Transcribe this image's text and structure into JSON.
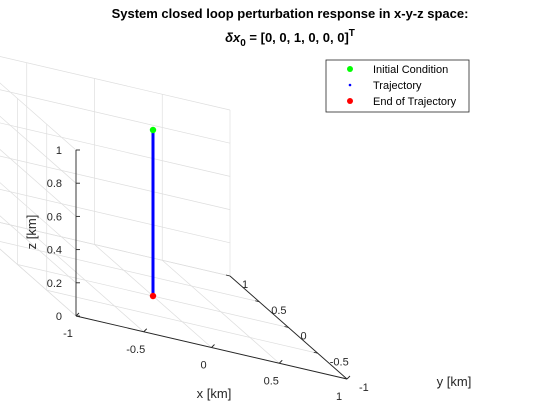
{
  "chart_data": {
    "type": "line",
    "projection": "3d",
    "title": "System closed loop perturbation response in x-y-z space:",
    "subtitle_lhs": "δx",
    "subtitle_sub": "0",
    "subtitle_rhs": " = [0, 0, 1, 0, 0, 0]",
    "subtitle_sup": "T",
    "xlabel": "x [km]",
    "ylabel": "y [km]",
    "zlabel": "z [km]",
    "xlim": [
      -1,
      1
    ],
    "ylim": [
      -1,
      1
    ],
    "zlim": [
      0,
      1
    ],
    "xticks": [
      -1,
      -0.5,
      0,
      0.5,
      1
    ],
    "yticks": [
      -1,
      -0.5,
      0,
      0.5,
      1
    ],
    "zticks": [
      0,
      0.2,
      0.4,
      0.6,
      0.8,
      1
    ],
    "xtick_labels": [
      "-1",
      "-0.5",
      "0",
      "0.5",
      "1"
    ],
    "ytick_labels": [
      "-1",
      "-0.5",
      "0",
      "0.5",
      "1"
    ],
    "ztick_labels": [
      "0",
      "0.2",
      "0.4",
      "0.6",
      "0.8",
      "1"
    ],
    "grid": true,
    "legend_position": "top-right",
    "series": [
      {
        "name": "Initial Condition",
        "marker": "dot",
        "color": "#00ff00",
        "points": [
          [
            0,
            0,
            1
          ]
        ]
      },
      {
        "name": "Trajectory",
        "marker": "line",
        "color": "#0000ff",
        "points": [
          [
            0,
            0,
            1
          ],
          [
            0,
            0,
            0.5
          ],
          [
            0,
            0,
            0
          ]
        ]
      },
      {
        "name": "End of Trajectory",
        "marker": "dot",
        "color": "#ff0000",
        "points": [
          [
            0,
            0,
            0
          ]
        ]
      }
    ]
  }
}
